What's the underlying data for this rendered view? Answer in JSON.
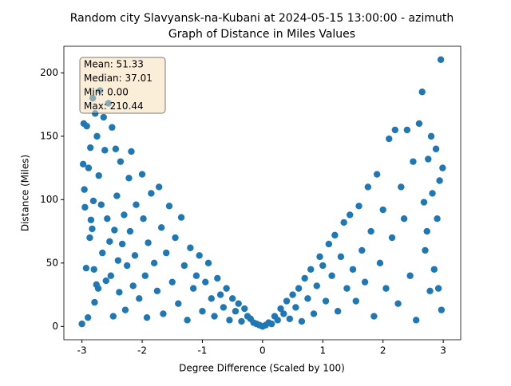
{
  "chart_data": {
    "type": "scatter",
    "title": "Random city Slavyansk-na-Kubani at 2024-05-15 13:00:00  - azimuth",
    "subtitle": "Graph of Distance in Miles Values",
    "x_label": "Degree Difference (Scaled by 100)",
    "y_label": "Distance (Miles)",
    "text_box": [
      "Mean: 51.33",
      "Median: 37.01",
      "Min: 0.00",
      "Max: 210.44"
    ],
    "color": "#1f77b4",
    "grid": false,
    "xlim": [
      -3.3,
      3.29
    ],
    "ylim": [
      -10.5,
      221
    ],
    "xticks": [
      -3,
      -2,
      -1,
      0,
      1,
      2,
      3
    ],
    "yticks": [
      0,
      50,
      100,
      150,
      200
    ],
    "x": [
      -3,
      -2.98,
      -2.97,
      -2.96,
      -2.95,
      -2.93,
      -2.92,
      -2.9,
      -2.89,
      -2.87,
      -2.86,
      -2.85,
      -2.83,
      -2.82,
      -2.81,
      -2.8,
      -2.79,
      -2.78,
      -2.76,
      -2.75,
      -2.73,
      -2.72,
      -2.7,
      -2.68,
      -2.66,
      -2.64,
      -2.62,
      -2.6,
      -2.58,
      -2.56,
      -2.54,
      -2.52,
      -2.5,
      -2.48,
      -2.46,
      -2.44,
      -2.42,
      -2.4,
      -2.38,
      -2.36,
      -2.33,
      -2.3,
      -2.28,
      -2.25,
      -2.22,
      -2.2,
      -2.18,
      -2.15,
      -2.12,
      -2.1,
      -2.05,
      -2.0,
      -1.98,
      -1.95,
      -1.92,
      -1.9,
      -1.85,
      -1.8,
      -1.75,
      -1.72,
      -1.68,
      -1.65,
      -1.6,
      -1.55,
      -1.5,
      -1.45,
      -1.4,
      -1.35,
      -1.3,
      -1.25,
      -1.2,
      -1.15,
      -1.1,
      -1.05,
      -1.0,
      -0.95,
      -0.9,
      -0.85,
      -0.8,
      -0.75,
      -0.7,
      -0.65,
      -0.6,
      -0.55,
      -0.5,
      -0.45,
      -0.4,
      -0.35,
      -0.3,
      -0.25,
      -0.2,
      -0.15,
      -0.1,
      -0.05,
      0,
      0.05,
      0.1,
      0.15,
      0.2,
      0.25,
      0.3,
      0.35,
      0.4,
      0.45,
      0.5,
      0.55,
      0.6,
      0.65,
      0.7,
      0.75,
      0.8,
      0.85,
      0.9,
      0.95,
      1.0,
      1.05,
      1.1,
      1.15,
      1.2,
      1.25,
      1.3,
      1.35,
      1.4,
      1.45,
      1.5,
      1.55,
      1.6,
      1.65,
      1.7,
      1.75,
      1.8,
      1.85,
      1.9,
      1.95,
      2.0,
      2.05,
      2.1,
      2.15,
      2.2,
      2.25,
      2.3,
      2.35,
      2.4,
      2.45,
      2.5,
      2.55,
      2.6,
      2.65,
      2.68,
      2.7,
      2.73,
      2.75,
      2.78,
      2.8,
      2.82,
      2.85,
      2.88,
      2.9,
      2.92,
      2.94,
      2.96,
      2.97,
      2.99
    ],
    "values": [
      2,
      128,
      160,
      108,
      94,
      46,
      158,
      7,
      125,
      70,
      141,
      84,
      77,
      180,
      99,
      45,
      19,
      168,
      33,
      150,
      30,
      119,
      186,
      96,
      58,
      165,
      139,
      36,
      85,
      176,
      67,
      40,
      157,
      8,
      76,
      140,
      103,
      52,
      27,
      130,
      65,
      88,
      13,
      48,
      117,
      75,
      138,
      32,
      56,
      96,
      22,
      120,
      85,
      40,
      7,
      66,
      105,
      50,
      28,
      110,
      78,
      10,
      58,
      95,
      35,
      70,
      18,
      86,
      48,
      5,
      62,
      30,
      40,
      56,
      12,
      35,
      50,
      22,
      8,
      38,
      25,
      15,
      30,
      5,
      22,
      12,
      18,
      4,
      14,
      8,
      6,
      3,
      2,
      1,
      0,
      1,
      3,
      2,
      8,
      5,
      14,
      10,
      20,
      6,
      25,
      15,
      30,
      4,
      38,
      22,
      45,
      10,
      32,
      55,
      48,
      20,
      65,
      40,
      72,
      12,
      55,
      82,
      30,
      88,
      45,
      20,
      95,
      60,
      35,
      110,
      75,
      8,
      120,
      50,
      92,
      30,
      148,
      70,
      155,
      18,
      110,
      85,
      155,
      40,
      130,
      5,
      160,
      185,
      98,
      60,
      75,
      132,
      28,
      150,
      105,
      45,
      140,
      85,
      30,
      115,
      210.44,
      13,
      125
    ]
  }
}
